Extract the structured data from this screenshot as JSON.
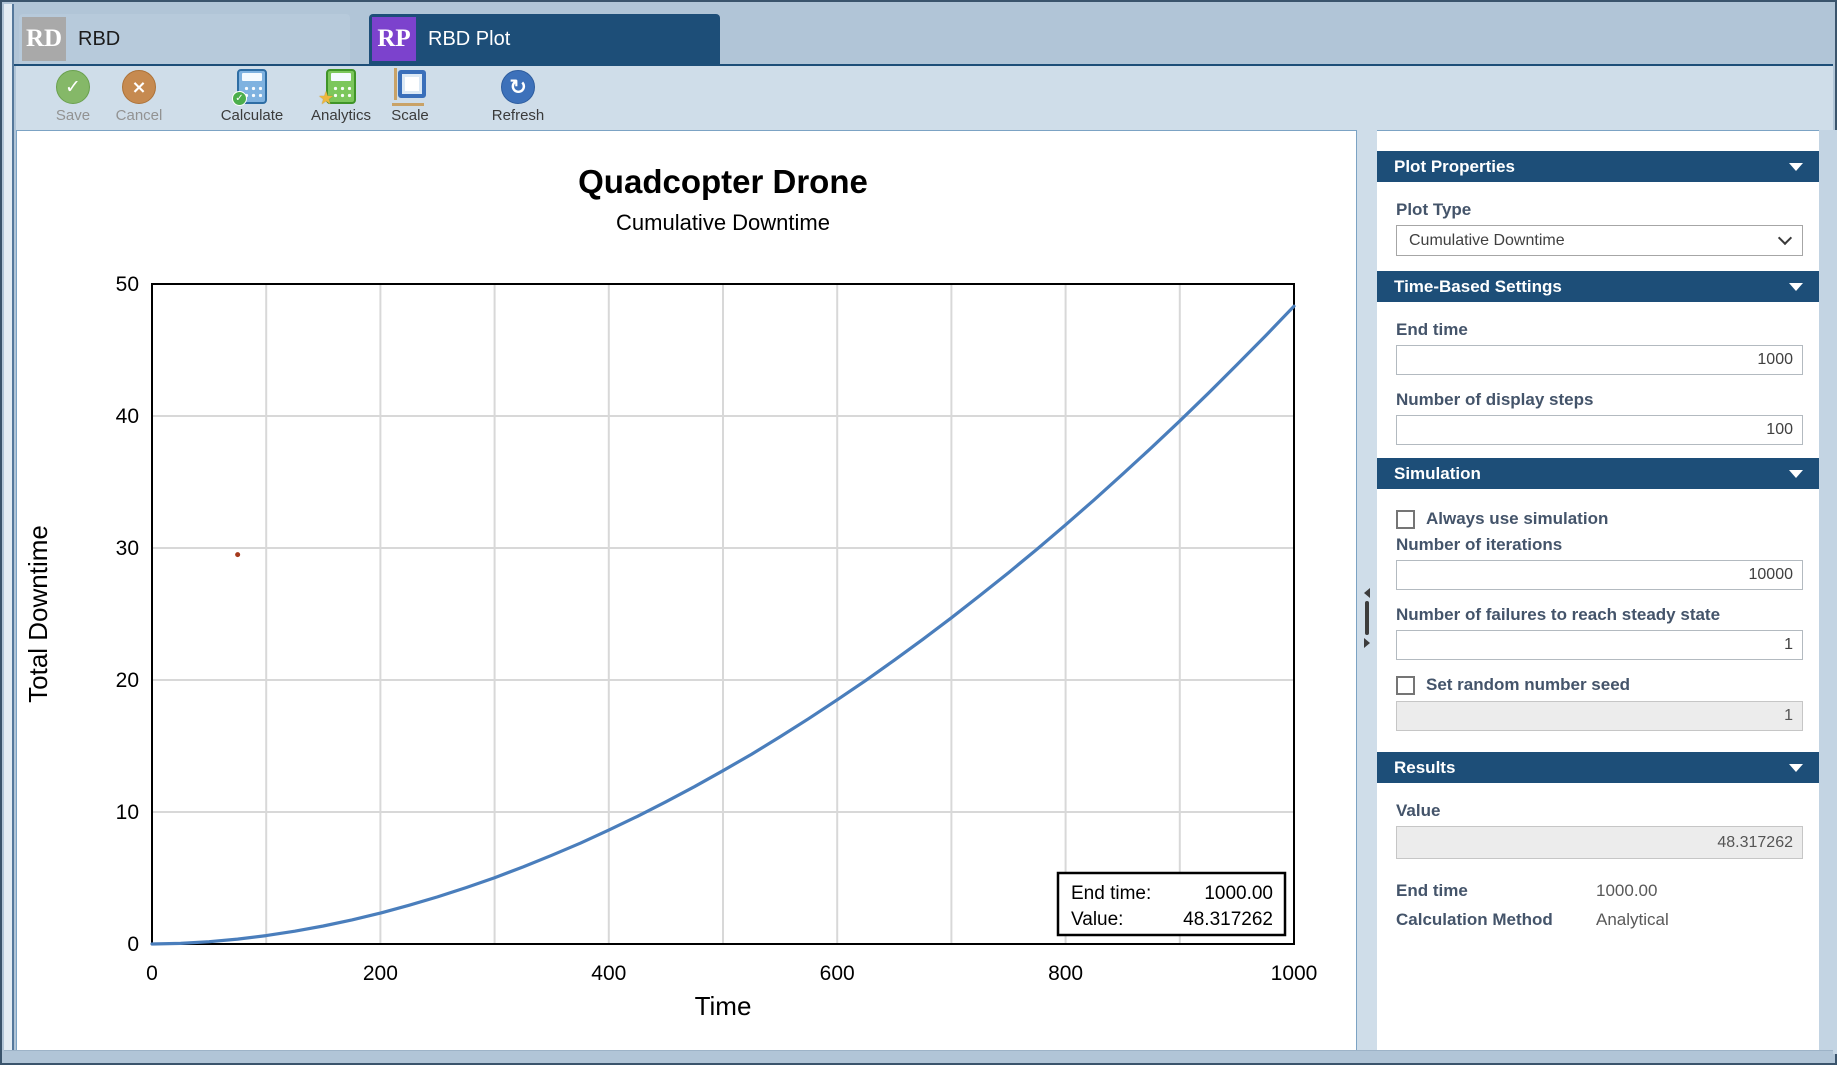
{
  "tabs": [
    {
      "abbr": "RD",
      "label": "RBD",
      "active": false
    },
    {
      "abbr": "RP",
      "label": "RBD Plot",
      "active": true
    }
  ],
  "toolbar": {
    "buttons": [
      {
        "name": "save",
        "label": "Save",
        "disabled": true
      },
      {
        "name": "cancel",
        "label": "Cancel",
        "disabled": true
      },
      {
        "name": "calculate",
        "label": "Calculate",
        "disabled": false
      },
      {
        "name": "analytics",
        "label": "Analytics",
        "disabled": false
      },
      {
        "name": "scale",
        "label": "Scale",
        "disabled": false
      },
      {
        "name": "refresh",
        "label": "Refresh",
        "disabled": false
      }
    ]
  },
  "colors": {
    "accent_header": "#1d4e78",
    "tab_icon_rd": "#a9a9a9",
    "tab_icon_rp": "#7c42cd",
    "sidebar_label": "#44546a"
  },
  "chart_data": {
    "type": "line",
    "title": "Quadcopter Drone",
    "subtitle": "Cumulative Downtime",
    "xlabel": "Time",
    "ylabel": "Total Downtime",
    "xlim": [
      0,
      1000
    ],
    "ylim": [
      0,
      50
    ],
    "xticks": [
      0,
      200,
      400,
      600,
      800,
      1000
    ],
    "yticks": [
      0,
      10,
      20,
      30,
      40,
      50
    ],
    "grid": {
      "on": true,
      "x_step": 100,
      "y_step": 10,
      "color": "#d8d8d8"
    },
    "series": [
      {
        "name": "Cumulative Downtime",
        "color": "#4a7ebc",
        "points": [
          [
            0,
            0
          ],
          [
            25,
            0.047
          ],
          [
            50,
            0.173
          ],
          [
            75,
            0.371
          ],
          [
            100,
            0.636
          ],
          [
            125,
            0.969
          ],
          [
            150,
            1.366
          ],
          [
            175,
            1.826
          ],
          [
            200,
            2.344
          ],
          [
            225,
            2.93
          ],
          [
            250,
            3.566
          ],
          [
            275,
            4.27
          ],
          [
            300,
            5.025
          ],
          [
            325,
            5.84
          ],
          [
            350,
            6.716
          ],
          [
            375,
            7.64
          ],
          [
            400,
            8.63
          ],
          [
            425,
            9.67
          ],
          [
            450,
            10.77
          ],
          [
            475,
            11.92
          ],
          [
            500,
            13.13
          ],
          [
            525,
            14.38
          ],
          [
            550,
            15.7
          ],
          [
            575,
            17.07
          ],
          [
            600,
            18.5
          ],
          [
            625,
            19.97
          ],
          [
            650,
            21.5
          ],
          [
            675,
            23.08
          ],
          [
            700,
            24.71
          ],
          [
            725,
            26.4
          ],
          [
            750,
            28.13
          ],
          [
            775,
            29.92
          ],
          [
            800,
            31.76
          ],
          [
            825,
            33.65
          ],
          [
            850,
            35.6
          ],
          [
            875,
            37.59
          ],
          [
            900,
            39.63
          ],
          [
            925,
            41.73
          ],
          [
            950,
            43.88
          ],
          [
            975,
            46.07
          ],
          [
            1000,
            48.317262
          ]
        ]
      }
    ],
    "marker": {
      "x": 75,
      "y": 29.5,
      "color": "#a5391c"
    },
    "annotation": {
      "rows": [
        {
          "label": "End time:",
          "value": "1000.00"
        },
        {
          "label": "Value:",
          "value": "48.317262"
        }
      ]
    }
  },
  "sidebar": {
    "plot_properties": {
      "title": "Plot Properties",
      "plot_type_label": "Plot Type",
      "plot_type_value": "Cumulative Downtime"
    },
    "time_settings": {
      "title": "Time-Based Settings",
      "end_time_label": "End time",
      "end_time_value": "1000",
      "steps_label": "Number of display steps",
      "steps_value": "100"
    },
    "simulation": {
      "title": "Simulation",
      "always_use_label": "Always use simulation",
      "iterations_label": "Number of iterations",
      "iterations_value": "10000",
      "failures_label": "Number of failures to reach steady state",
      "failures_value": "1",
      "seed_label": "Set random number seed",
      "seed_value": "1"
    },
    "results": {
      "title": "Results",
      "value_label": "Value",
      "value": "48.317262",
      "end_time_label": "End time",
      "end_time_value": "1000.00",
      "method_label": "Calculation Method",
      "method_value": "Analytical"
    }
  }
}
